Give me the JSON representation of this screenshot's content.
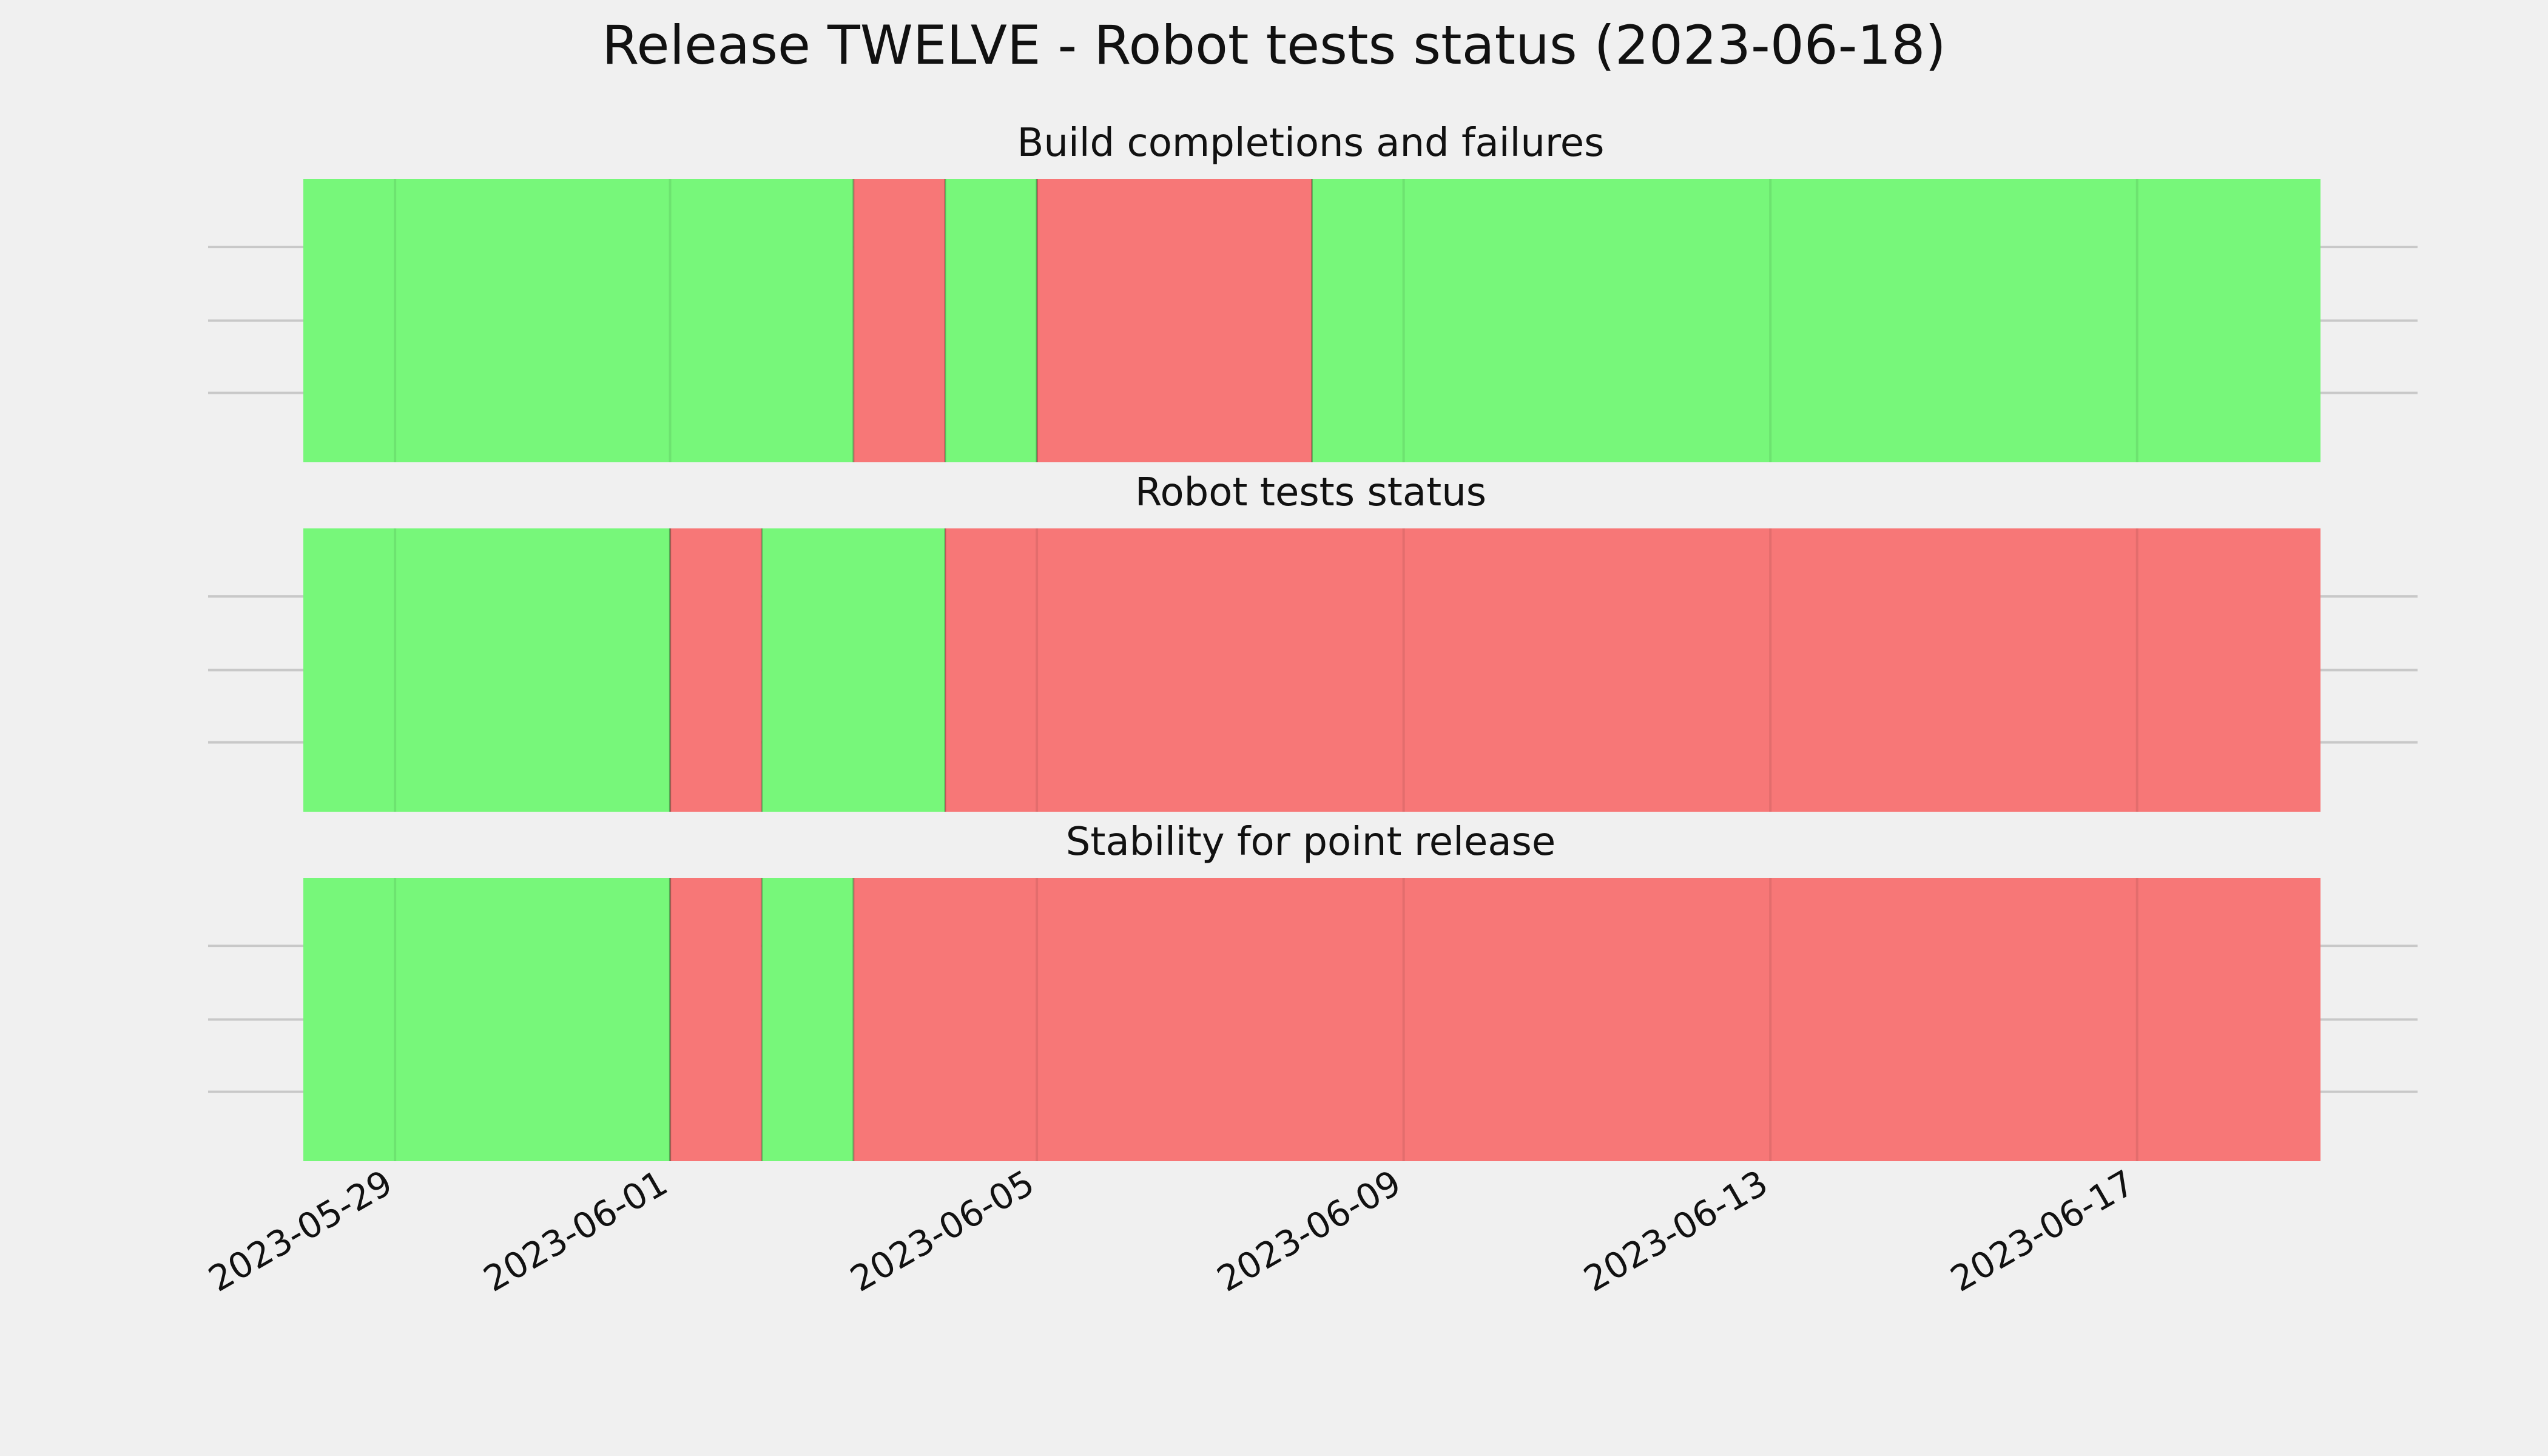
{
  "title": "Release TWELVE - Robot tests status (2023-06-18)",
  "colors": {
    "background": "#f0f0f0",
    "pass": "#77f77a",
    "fail": "#f77777",
    "grid": "#c8c8c8"
  },
  "chart_data": [
    {
      "type": "status-timeline",
      "title": "Build completions and failures",
      "x_range": [
        "2023-05-28",
        "2023-06-19"
      ],
      "xticks": [
        "2023-05-29",
        "2023-06-01",
        "2023-06-05",
        "2023-06-09",
        "2023-06-13",
        "2023-06-17"
      ],
      "grid": true,
      "segments": [
        {
          "start": "2023-05-28",
          "end": "2023-06-03",
          "status": "pass"
        },
        {
          "start": "2023-06-03",
          "end": "2023-06-04",
          "status": "fail"
        },
        {
          "start": "2023-06-04",
          "end": "2023-06-05",
          "status": "pass"
        },
        {
          "start": "2023-06-05",
          "end": "2023-06-08",
          "status": "fail"
        },
        {
          "start": "2023-06-08",
          "end": "2023-06-19",
          "status": "pass"
        }
      ]
    },
    {
      "type": "status-timeline",
      "title": "Robot tests status",
      "x_range": [
        "2023-05-28",
        "2023-06-19"
      ],
      "xticks": [
        "2023-05-29",
        "2023-06-01",
        "2023-06-05",
        "2023-06-09",
        "2023-06-13",
        "2023-06-17"
      ],
      "grid": true,
      "segments": [
        {
          "start": "2023-05-28",
          "end": "2023-06-01",
          "status": "pass"
        },
        {
          "start": "2023-06-01",
          "end": "2023-06-02",
          "status": "fail"
        },
        {
          "start": "2023-06-02",
          "end": "2023-06-04",
          "status": "pass"
        },
        {
          "start": "2023-06-04",
          "end": "2023-06-19",
          "status": "fail"
        }
      ]
    },
    {
      "type": "status-timeline",
      "title": "Stability for point release",
      "x_range": [
        "2023-05-28",
        "2023-06-19"
      ],
      "xticks": [
        "2023-05-29",
        "2023-06-01",
        "2023-06-05",
        "2023-06-09",
        "2023-06-13",
        "2023-06-17"
      ],
      "grid": true,
      "segments": [
        {
          "start": "2023-05-28",
          "end": "2023-06-01",
          "status": "pass"
        },
        {
          "start": "2023-06-01",
          "end": "2023-06-02",
          "status": "fail"
        },
        {
          "start": "2023-06-02",
          "end": "2023-06-03",
          "status": "pass"
        },
        {
          "start": "2023-06-03",
          "end": "2023-06-19",
          "status": "fail"
        }
      ]
    }
  ]
}
